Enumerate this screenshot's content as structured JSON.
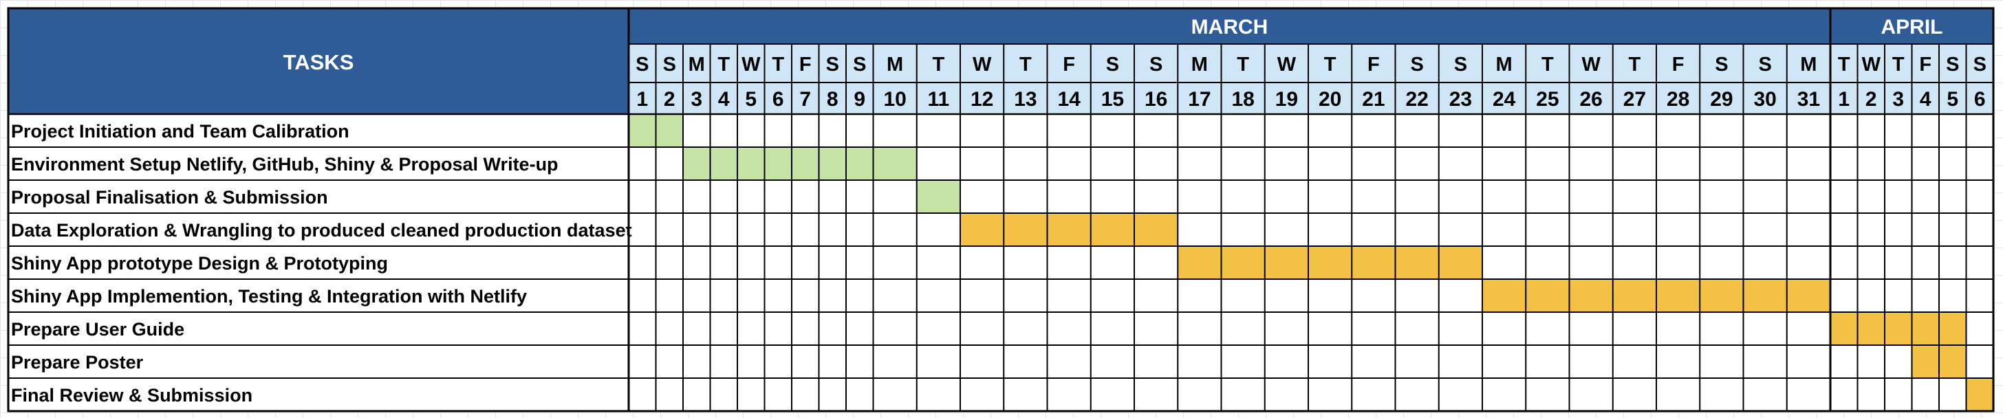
{
  "chart_data": {
    "type": "table",
    "tasks_header": "TASKS",
    "months": [
      {
        "name": "MARCH",
        "start_index": 0,
        "days": 31
      },
      {
        "name": "APRIL",
        "start_index": 31,
        "days": 6
      }
    ],
    "weekday_letters": [
      "S",
      "S",
      "M",
      "T",
      "W",
      "T",
      "F",
      "S",
      "S",
      "M",
      "T",
      "W",
      "T",
      "F",
      "S",
      "S",
      "M",
      "T",
      "W",
      "T",
      "F",
      "S",
      "S",
      "M",
      "T",
      "W",
      "T",
      "F",
      "S",
      "S",
      "M",
      "T",
      "W",
      "T",
      "F",
      "S",
      "S"
    ],
    "day_numbers": [
      "1",
      "2",
      "3",
      "4",
      "5",
      "6",
      "7",
      "8",
      "9",
      "10",
      "11",
      "12",
      "13",
      "14",
      "15",
      "16",
      "17",
      "18",
      "19",
      "20",
      "21",
      "22",
      "23",
      "24",
      "25",
      "26",
      "27",
      "28",
      "29",
      "30",
      "31",
      "1",
      "2",
      "3",
      "4",
      "5",
      "6"
    ],
    "tasks": [
      {
        "label": "Project Initiation and Team Calibration",
        "start": 0,
        "end": 1,
        "color": "#c6e4a6"
      },
      {
        "label": "Environment Setup Netlify, GitHub, Shiny & Proposal Write-up",
        "start": 2,
        "end": 9,
        "color": "#c6e4a6"
      },
      {
        "label": "Proposal Finalisation & Submission",
        "start": 10,
        "end": 10,
        "color": "#c6e4a6"
      },
      {
        "label": "Data Exploration & Wrangling to produced cleaned production dataset",
        "start": 11,
        "end": 15,
        "color": "#f3c244"
      },
      {
        "label": "Shiny App prototype Design & Prototyping",
        "start": 16,
        "end": 22,
        "color": "#f3c244"
      },
      {
        "label": "Shiny App Implemention, Testing &  Integration with Netlify",
        "start": 23,
        "end": 30,
        "color": "#f3c244"
      },
      {
        "label": "Prepare User Guide",
        "start": 31,
        "end": 35,
        "color": "#f3c244"
      },
      {
        "label": "Prepare Poster",
        "start": 34,
        "end": 35,
        "color": "#f3c244"
      },
      {
        "label": "Final Review & Submission",
        "start": 36,
        "end": 36,
        "color": "#f3c244"
      }
    ],
    "colors": {
      "header_blue": "#2f5b96",
      "day_header_bg": "#cfe6f6",
      "done_green": "#c6e4a6",
      "planned_amber": "#f3c244"
    }
  }
}
